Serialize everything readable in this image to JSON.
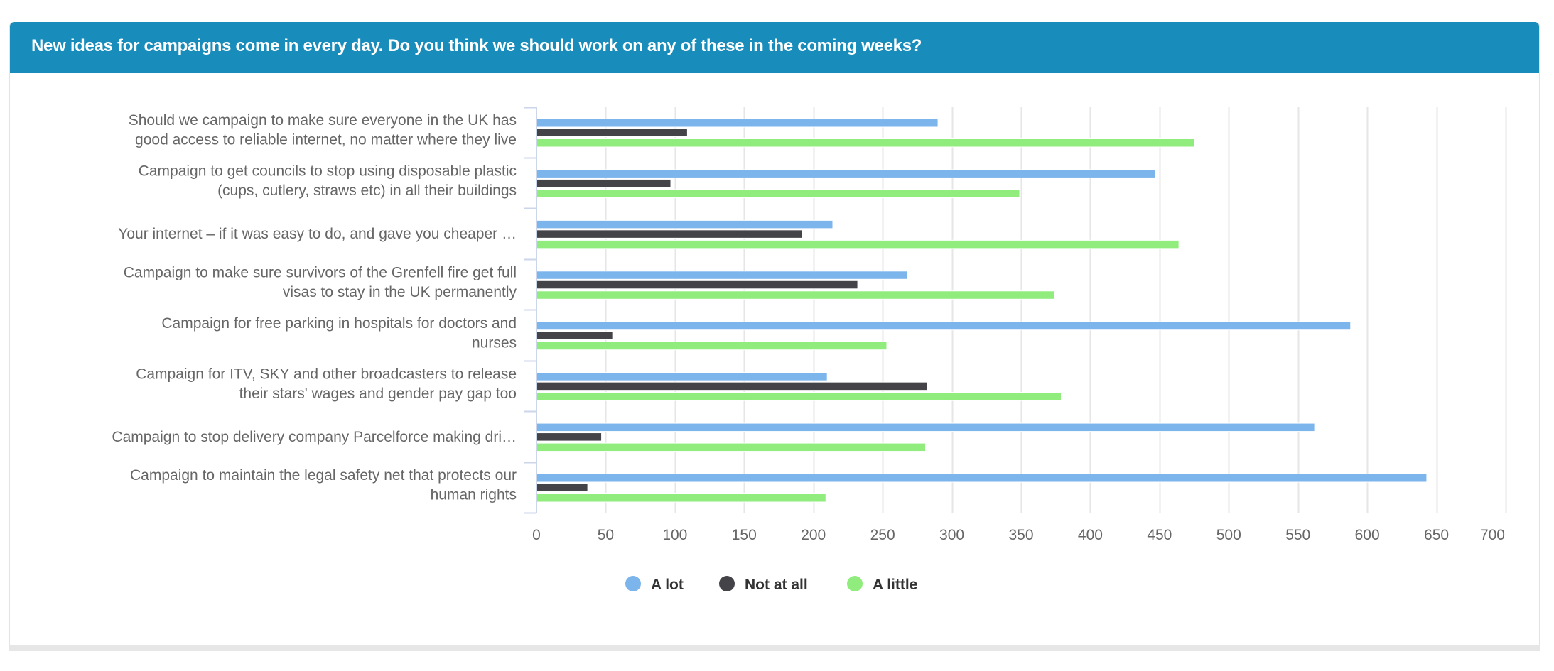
{
  "header": {
    "title": "New ideas for campaigns come in every day. Do you think we should work on any of these in the coming weeks?",
    "background_color": "#188cba"
  },
  "chart_data": {
    "type": "bar",
    "orientation": "horizontal",
    "title": "New ideas for campaigns come in every day. Do you think we should work on any of these in the coming weeks?",
    "xlabel": "",
    "ylabel": "",
    "categories": [
      [
        "Should we campaign to make sure everyone in the UK has",
        "good access to reliable internet, no matter where they live"
      ],
      [
        "Campaign to get councils to stop using disposable plastic",
        "(cups, cutlery, straws etc) in all their buildings"
      ],
      [
        "Your internet – if it was easy to do, and gave you cheaper …"
      ],
      [
        "Campaign to make sure survivors of the Grenfell fire get full",
        "visas to stay in the UK permanently"
      ],
      [
        "Campaign for free parking in hospitals for doctors and",
        "nurses"
      ],
      [
        "Campaign for ITV, SKY and other broadcasters to release",
        "their stars' wages and gender pay gap too"
      ],
      [
        "Campaign to stop delivery company Parcelforce making dri…"
      ],
      [
        "Campaign to maintain the legal safety net that protects our",
        "human rights"
      ]
    ],
    "series": [
      {
        "name": "A lot",
        "color": "#7cb5ec",
        "values": [
          290,
          447,
          214,
          268,
          588,
          210,
          562,
          643
        ]
      },
      {
        "name": "Not at all",
        "color": "#434348",
        "values": [
          109,
          97,
          192,
          232,
          55,
          282,
          47,
          37
        ]
      },
      {
        "name": "A little",
        "color": "#90ed7d",
        "values": [
          475,
          349,
          464,
          374,
          253,
          379,
          281,
          209
        ]
      }
    ],
    "xlim": [
      0,
      700
    ],
    "ticks": [
      "0",
      "50",
      "100",
      "150",
      "200",
      "250",
      "300",
      "350",
      "400",
      "450",
      "500",
      "550",
      "600",
      "650",
      "700"
    ],
    "tick_values": [
      0,
      50,
      100,
      150,
      200,
      250,
      300,
      350,
      400,
      450,
      500,
      550,
      600,
      650,
      700
    ],
    "grid": true,
    "legend_position": "bottom-center"
  }
}
